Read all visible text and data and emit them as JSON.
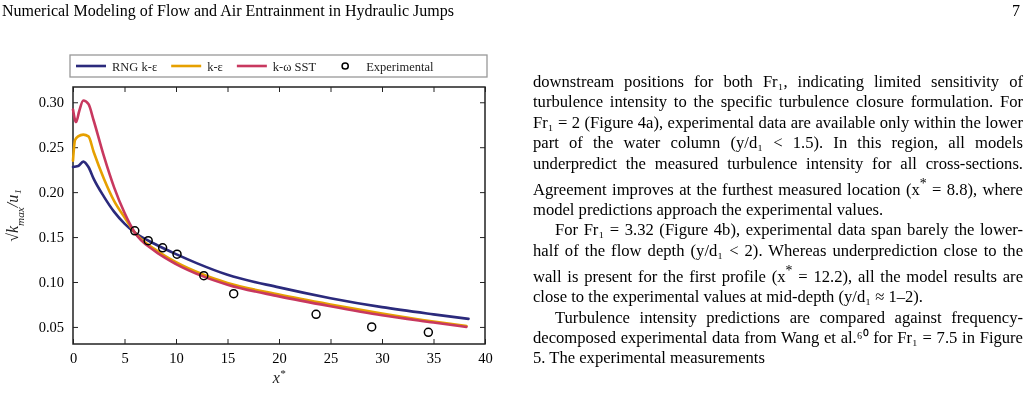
{
  "chart_data": {
    "type": "line",
    "title": "Numerical Modeling of Flow and Air Entrainment in Hydraulic Jumps",
    "xlabel": "x$^{*}$",
    "ylabel": "√k$_{max}$/u₁",
    "xlim": [
      0,
      40
    ],
    "ylim": [
      0.031,
      0.317
    ],
    "xticks": [
      0,
      5,
      10,
      15,
      20,
      25,
      30,
      35,
      40
    ],
    "yticks": [
      {
        "value": 0.05,
        "label": "0.05"
      },
      {
        "value": 0.1,
        "label": "0.10"
      },
      {
        "value": 0.15,
        "label": "0.15"
      },
      {
        "value": 0.2,
        "label": "0.20"
      },
      {
        "value": 0.25,
        "label": "0.25"
      },
      {
        "value": 0.3,
        "label": "0.30"
      }
    ],
    "grid": false,
    "legend": "top",
    "line_style": "solid",
    "series": [
      {
        "name": "RNG k-ε",
        "color": "#2b2a7c",
        "x": [
          0,
          0.5,
          1,
          1.5,
          2,
          3,
          4,
          5,
          6,
          8,
          10,
          12,
          15,
          20,
          25,
          30,
          35,
          38.4
        ],
        "values": [
          0.228,
          0.229,
          0.234,
          0.228,
          0.215,
          0.195,
          0.178,
          0.165,
          0.155,
          0.142,
          0.131,
          0.121,
          0.108,
          0.094,
          0.082,
          0.072,
          0.064,
          0.059
        ]
      },
      {
        "name": "k-ε",
        "color": "#e6a000",
        "x": [
          0,
          0.2,
          0.5,
          1,
          1.5,
          2,
          3,
          4,
          5,
          6,
          8,
          10,
          12.7,
          15,
          20,
          25,
          30,
          35,
          38.2
        ],
        "values": [
          0.235,
          0.258,
          0.262,
          0.264,
          0.262,
          0.245,
          0.215,
          0.19,
          0.172,
          0.155,
          0.136,
          0.122,
          0.108,
          0.099,
          0.086,
          0.075,
          0.065,
          0.056,
          0.051
        ]
      },
      {
        "name": "k-ω SST",
        "color": "#c8385f",
        "x": [
          0,
          0.3,
          0.6,
          1,
          1.5,
          2,
          3,
          4,
          5,
          6,
          8,
          10,
          12.7,
          15,
          20,
          25,
          30,
          35,
          38.2
        ],
        "values": [
          0.292,
          0.278,
          0.29,
          0.302,
          0.298,
          0.28,
          0.24,
          0.205,
          0.177,
          0.155,
          0.134,
          0.12,
          0.106,
          0.097,
          0.084,
          0.073,
          0.063,
          0.055,
          0.05
        ]
      },
      {
        "name": "Experimental",
        "type": "scatter",
        "marker": "circle",
        "color": "#000000",
        "x": [
          6.0,
          7.3,
          8.7,
          10.1,
          12.7,
          15.6,
          23.6,
          29.0,
          34.5
        ],
        "values": [
          0.157,
          0.146,
          0.138,
          0.131,
          0.107,
          0.087,
          0.064,
          0.05,
          0.044
        ]
      }
    ],
    "annotations": [
      "7",
      "downstream positions for both Fr₁, indicating limited sensitivity of turbulence intensity to the specific turbulence closure formulation. For Fr₁ = 2 (Figure 4a), experimental data are available only within the lower part of the water column (y/d₁ < 1.5). In this region, all models underpredict the measured turbulence intensity for all cross-sections. Agreement improves at the furthest measured location (x$^{*}$ = 8.8), where model predictions approach the experimental values.",
      "For Fr₁ = 3.32 (Figure 4b), experimental data span barely the lower-half of the flow depth (y/d₁ < 2). Whereas underprediction close to the wall is present for the first profile (x$^{*}$ = 12.2), all the model results are close to the experimental values at mid-depth (y/d₁ ≈ 1–2).",
      "Turbulence intensity predictions are compared against frequency-decomposed experimental data from Wang et al.⁶⁰ for Fr₁ = 7.5 in Figure 5. The experimental measurements"
    ]
  }
}
